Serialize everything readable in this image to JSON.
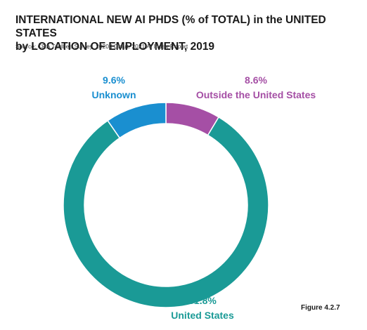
{
  "header": {
    "title_line1": "INTERNATIONAL NEW AI PHDS (% of TOTAL) in the UNITED STATES",
    "title_line2": "by LOCATION OF EMPLOYMENT, 2019",
    "source": "Source: CRA Taulbee Survey, 2020 | Chart: 2021 AI Index Report"
  },
  "figure_label": "Figure 4.2.7",
  "chart_data": {
    "type": "pie",
    "variant": "donut",
    "categories": [
      "Outside the United States",
      "United States",
      "Unknown"
    ],
    "values": [
      8.6,
      81.8,
      9.6
    ],
    "value_labels": [
      "8.6%",
      "81.8%",
      "9.6%"
    ],
    "colors": [
      "#a54fa5",
      "#1a9a96",
      "#1a8fd0"
    ],
    "start_angle": "12 o'clock, clockwise"
  }
}
